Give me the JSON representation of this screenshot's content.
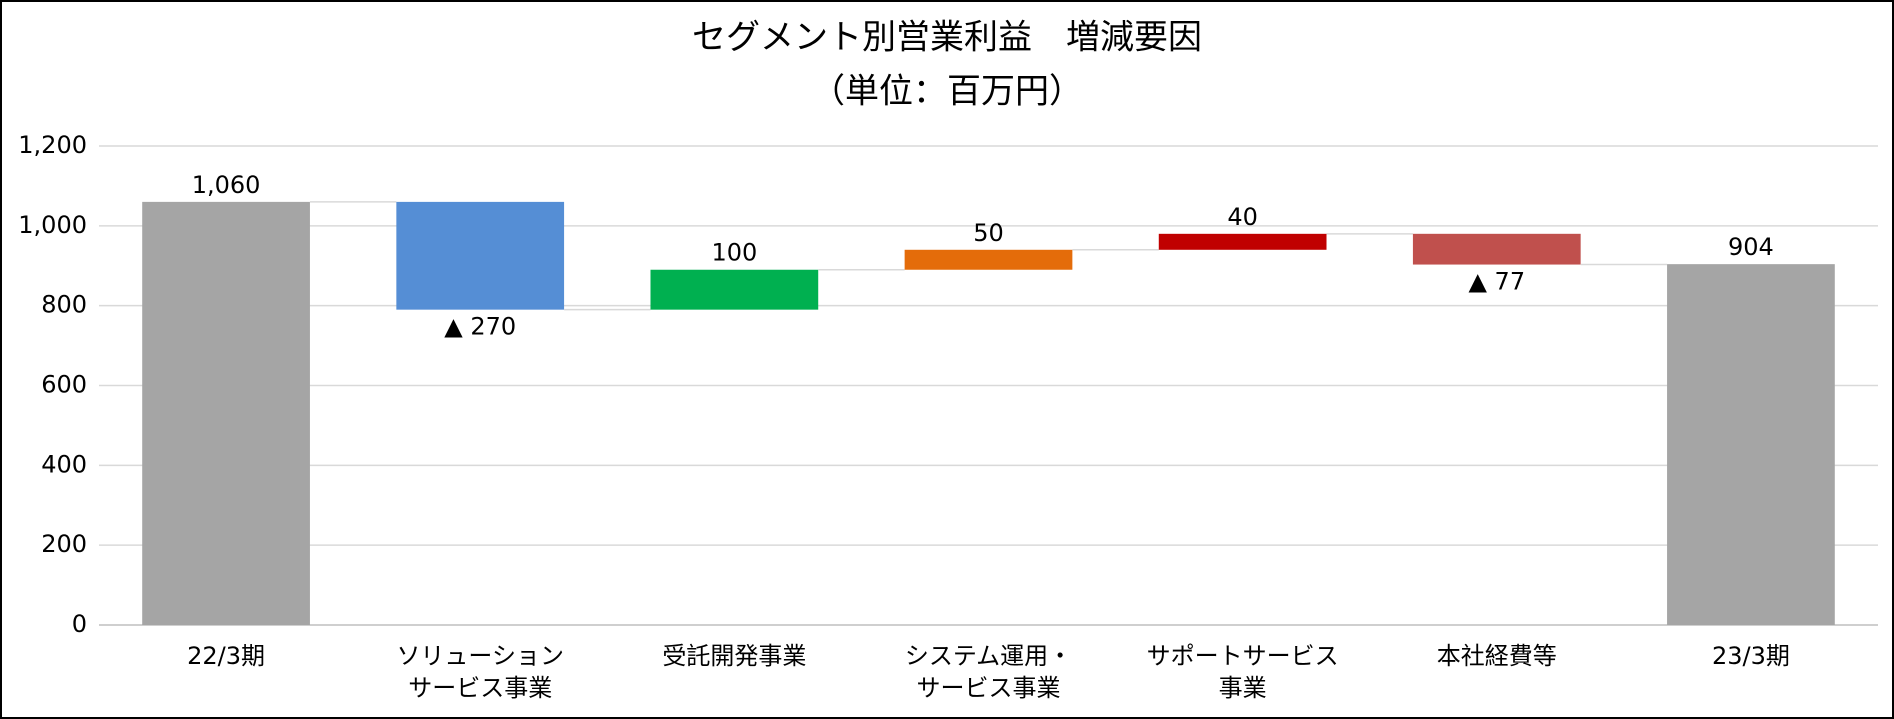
{
  "chart_data": {
    "type": "waterfall",
    "title": "セグメント別営業利益　増減要因",
    "subtitle": "（単位：百万円）",
    "categories": [
      "22/3期",
      "ソリューション\nサービス事業",
      "受託開発事業",
      "システム運用・\nサービス事業",
      "サポートサービス\n事業",
      "本社経費等",
      "23/3期"
    ],
    "values": [
      1060,
      -270,
      100,
      50,
      40,
      -77,
      904
    ],
    "value_labels": [
      "1,060",
      "▲ 270",
      "100",
      "50",
      "40",
      "▲ 77",
      "904"
    ],
    "colors": [
      "#a5a5a5",
      "#558ed5",
      "#00b050",
      "#e46c0a",
      "#c00000",
      "#c0504d",
      "#a5a5a5"
    ],
    "ylim": [
      0,
      1200
    ],
    "yticks": [
      0,
      200,
      400,
      600,
      800,
      {
        "value": 1000,
        "label": "1,000"
      },
      {
        "value": 1200,
        "label": "1,200"
      }
    ],
    "grid": true
  }
}
